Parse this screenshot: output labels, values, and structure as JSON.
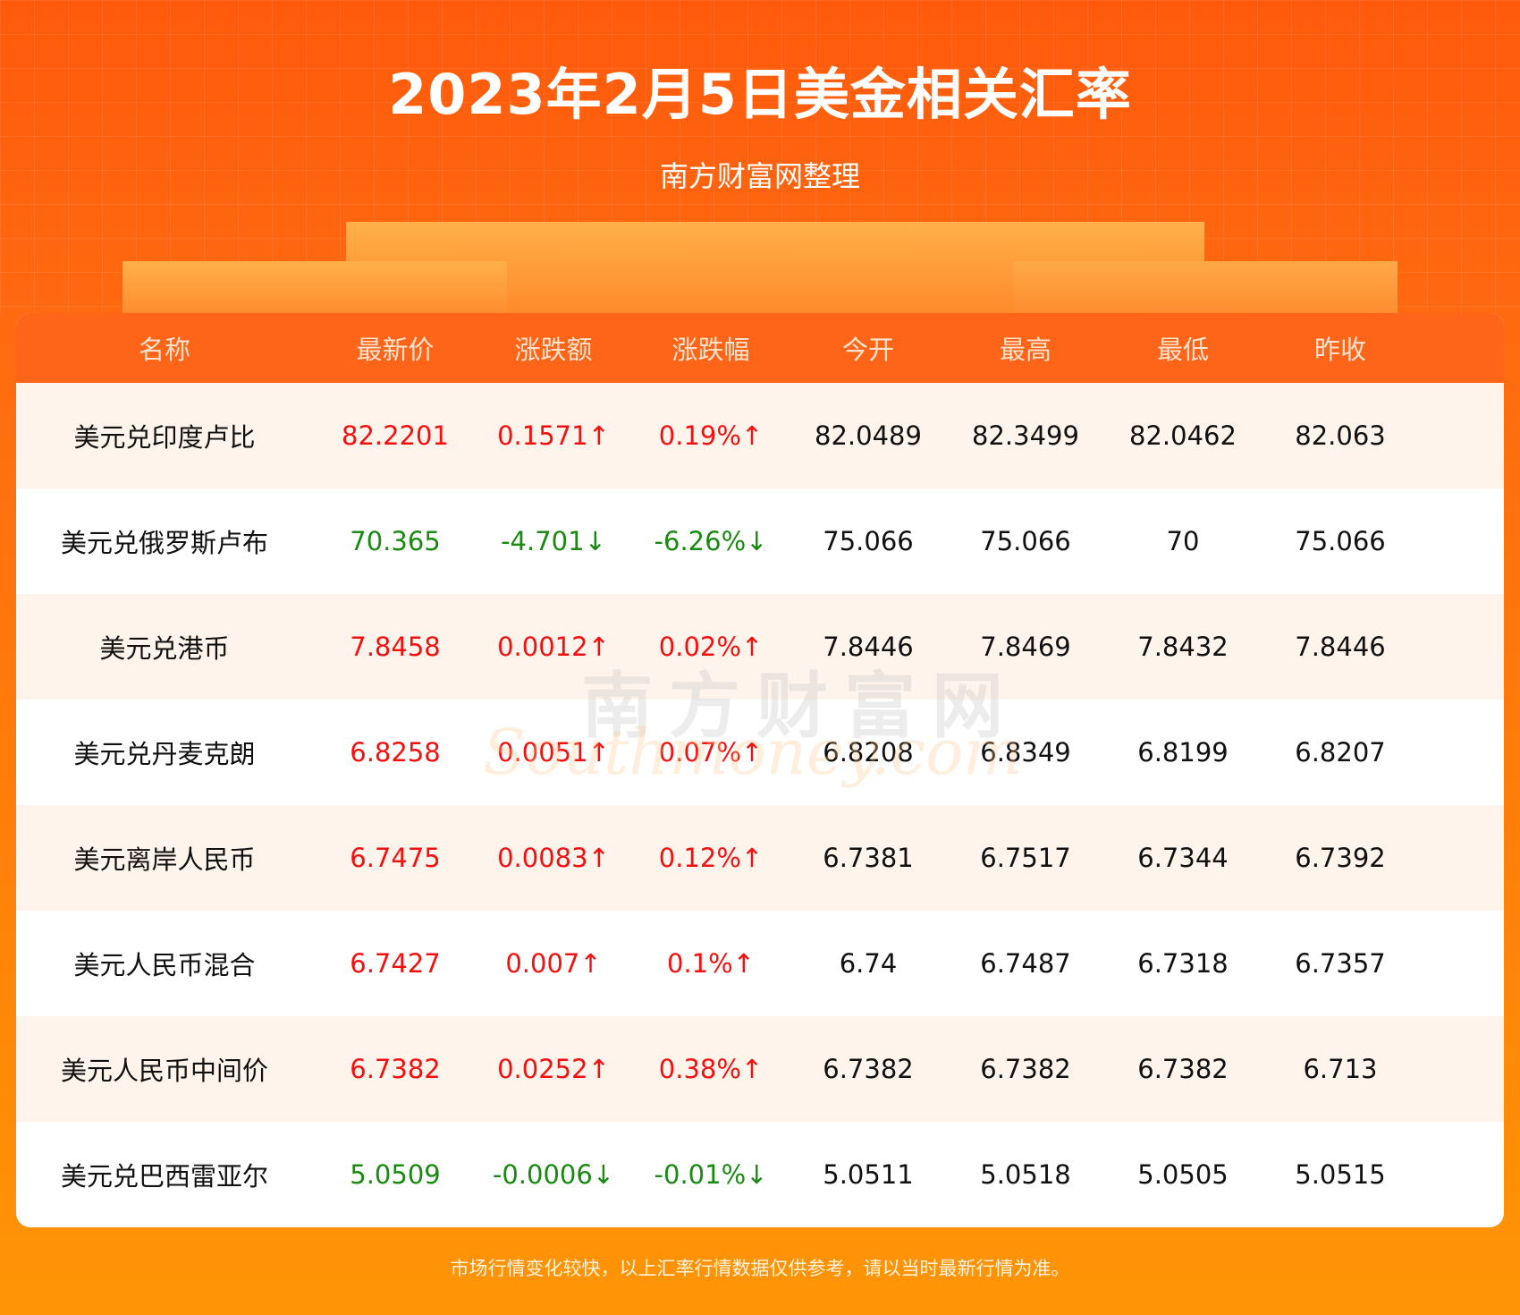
{
  "header": {
    "title": "2023年2月5日美金相关汇率",
    "subtitle": "南方财富网整理"
  },
  "colors": {
    "up": "#f50f0f",
    "down": "#1b8a12",
    "header_bg": "#ff6518",
    "row_alt": "#fff4ec"
  },
  "table": {
    "columns": [
      "名称",
      "最新价",
      "涨跌额",
      "涨跌幅",
      "今开",
      "最高",
      "最低",
      "昨收"
    ],
    "rows": [
      {
        "name": "美元兑印度卢比",
        "latest": "82.2201",
        "change": "0.1571↑",
        "pct": "0.19%↑",
        "open": "82.0489",
        "high": "82.3499",
        "low": "82.0462",
        "prev": "82.063",
        "dir": "up"
      },
      {
        "name": "美元兑俄罗斯卢布",
        "latest": "70.365",
        "change": "-4.701↓",
        "pct": "-6.26%↓",
        "open": "75.066",
        "high": "75.066",
        "low": "70",
        "prev": "75.066",
        "dir": "down"
      },
      {
        "name": "美元兑港币",
        "latest": "7.8458",
        "change": "0.0012↑",
        "pct": "0.02%↑",
        "open": "7.8446",
        "high": "7.8469",
        "low": "7.8432",
        "prev": "7.8446",
        "dir": "up"
      },
      {
        "name": "美元兑丹麦克朗",
        "latest": "6.8258",
        "change": "0.0051↑",
        "pct": "0.07%↑",
        "open": "6.8208",
        "high": "6.8349",
        "low": "6.8199",
        "prev": "6.8207",
        "dir": "up"
      },
      {
        "name": "美元离岸人民币",
        "latest": "6.7475",
        "change": "0.0083↑",
        "pct": "0.12%↑",
        "open": "6.7381",
        "high": "6.7517",
        "low": "6.7344",
        "prev": "6.7392",
        "dir": "up"
      },
      {
        "name": "美元人民币混合",
        "latest": "6.7427",
        "change": "0.007↑",
        "pct": "0.1%↑",
        "open": "6.74",
        "high": "6.7487",
        "low": "6.7318",
        "prev": "6.7357",
        "dir": "up"
      },
      {
        "name": "美元人民币中间价",
        "latest": "6.7382",
        "change": "0.0252↑",
        "pct": "0.38%↑",
        "open": "6.7382",
        "high": "6.7382",
        "low": "6.7382",
        "prev": "6.713",
        "dir": "up"
      },
      {
        "name": "美元兑巴西雷亚尔",
        "latest": "5.0509",
        "change": "-0.0006↓",
        "pct": "-0.01%↓",
        "open": "5.0511",
        "high": "5.0518",
        "low": "5.0505",
        "prev": "5.0515",
        "dir": "down"
      }
    ]
  },
  "watermark": {
    "cn": "南方财富网",
    "en": "southmoney.com"
  },
  "footer": {
    "disclaimer": "市场行情变化较快，以上汇率行情数据仅供参考，请以当时最新行情为准。"
  }
}
